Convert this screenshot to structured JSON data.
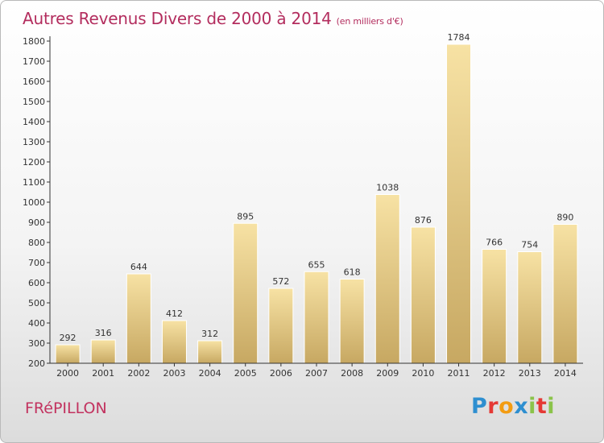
{
  "header": {
    "title": "Autres Revenus Divers de 2000 à 2014",
    "subtitle": "(en milliers d'€)"
  },
  "footer": {
    "commune": "FRéPILLON",
    "logo": {
      "letters": [
        "P",
        "r",
        "o",
        "x",
        "i",
        "t",
        "i"
      ],
      "colors": [
        "#2e8fd0",
        "#e53935",
        "#f39c12",
        "#2e8fd0",
        "#8bc34a",
        "#e53935",
        "#8bc34a"
      ]
    }
  },
  "colors": {
    "title": "#b32d5e",
    "bar_light": "#f7e2a4",
    "bar_dark": "#c7a862",
    "axis": "#333333"
  },
  "chart_data": {
    "type": "bar",
    "categories": [
      "2000",
      "2001",
      "2002",
      "2003",
      "2004",
      "2005",
      "2006",
      "2007",
      "2008",
      "2009",
      "2010",
      "2011",
      "2012",
      "2013",
      "2014"
    ],
    "values": [
      292,
      316,
      644,
      412,
      312,
      895,
      572,
      655,
      618,
      1038,
      876,
      1784,
      766,
      754,
      890
    ],
    "ylim": [
      200,
      1800
    ],
    "yticks": [
      200,
      300,
      400,
      500,
      600,
      700,
      800,
      900,
      1000,
      1100,
      1200,
      1300,
      1400,
      1500,
      1600,
      1700,
      1800
    ],
    "grid": false,
    "data_labels": true
  }
}
